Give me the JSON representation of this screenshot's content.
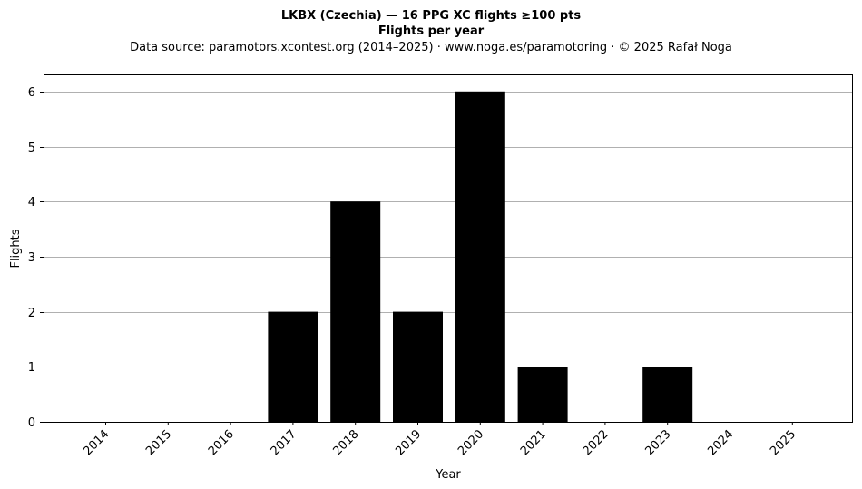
{
  "chart_data": {
    "type": "bar",
    "title": "LKBX (Czechia)  —  16 PPG XC flights ≥100 pts",
    "title_line2": "Flights per year",
    "subtitle": "Data source: paramotors.xcontest.org (2014–2025)  ·  www.noga.es/paramotoring  ·  © 2025 Rafał Noga",
    "xlabel": "Year",
    "ylabel": "Flights",
    "categories": [
      "2014",
      "2015",
      "2016",
      "2017",
      "2018",
      "2019",
      "2020",
      "2021",
      "2022",
      "2023",
      "2024",
      "2025"
    ],
    "values": [
      0,
      0,
      0,
      2,
      4,
      2,
      6,
      1,
      0,
      1,
      0,
      0
    ],
    "yticks": [
      "0",
      "1",
      "2",
      "3",
      "4",
      "5",
      "6"
    ],
    "ylim": [
      0,
      6.3
    ],
    "grid": "horizontal",
    "bar_color": "#000000",
    "grid_color": "#b0b0b0"
  }
}
